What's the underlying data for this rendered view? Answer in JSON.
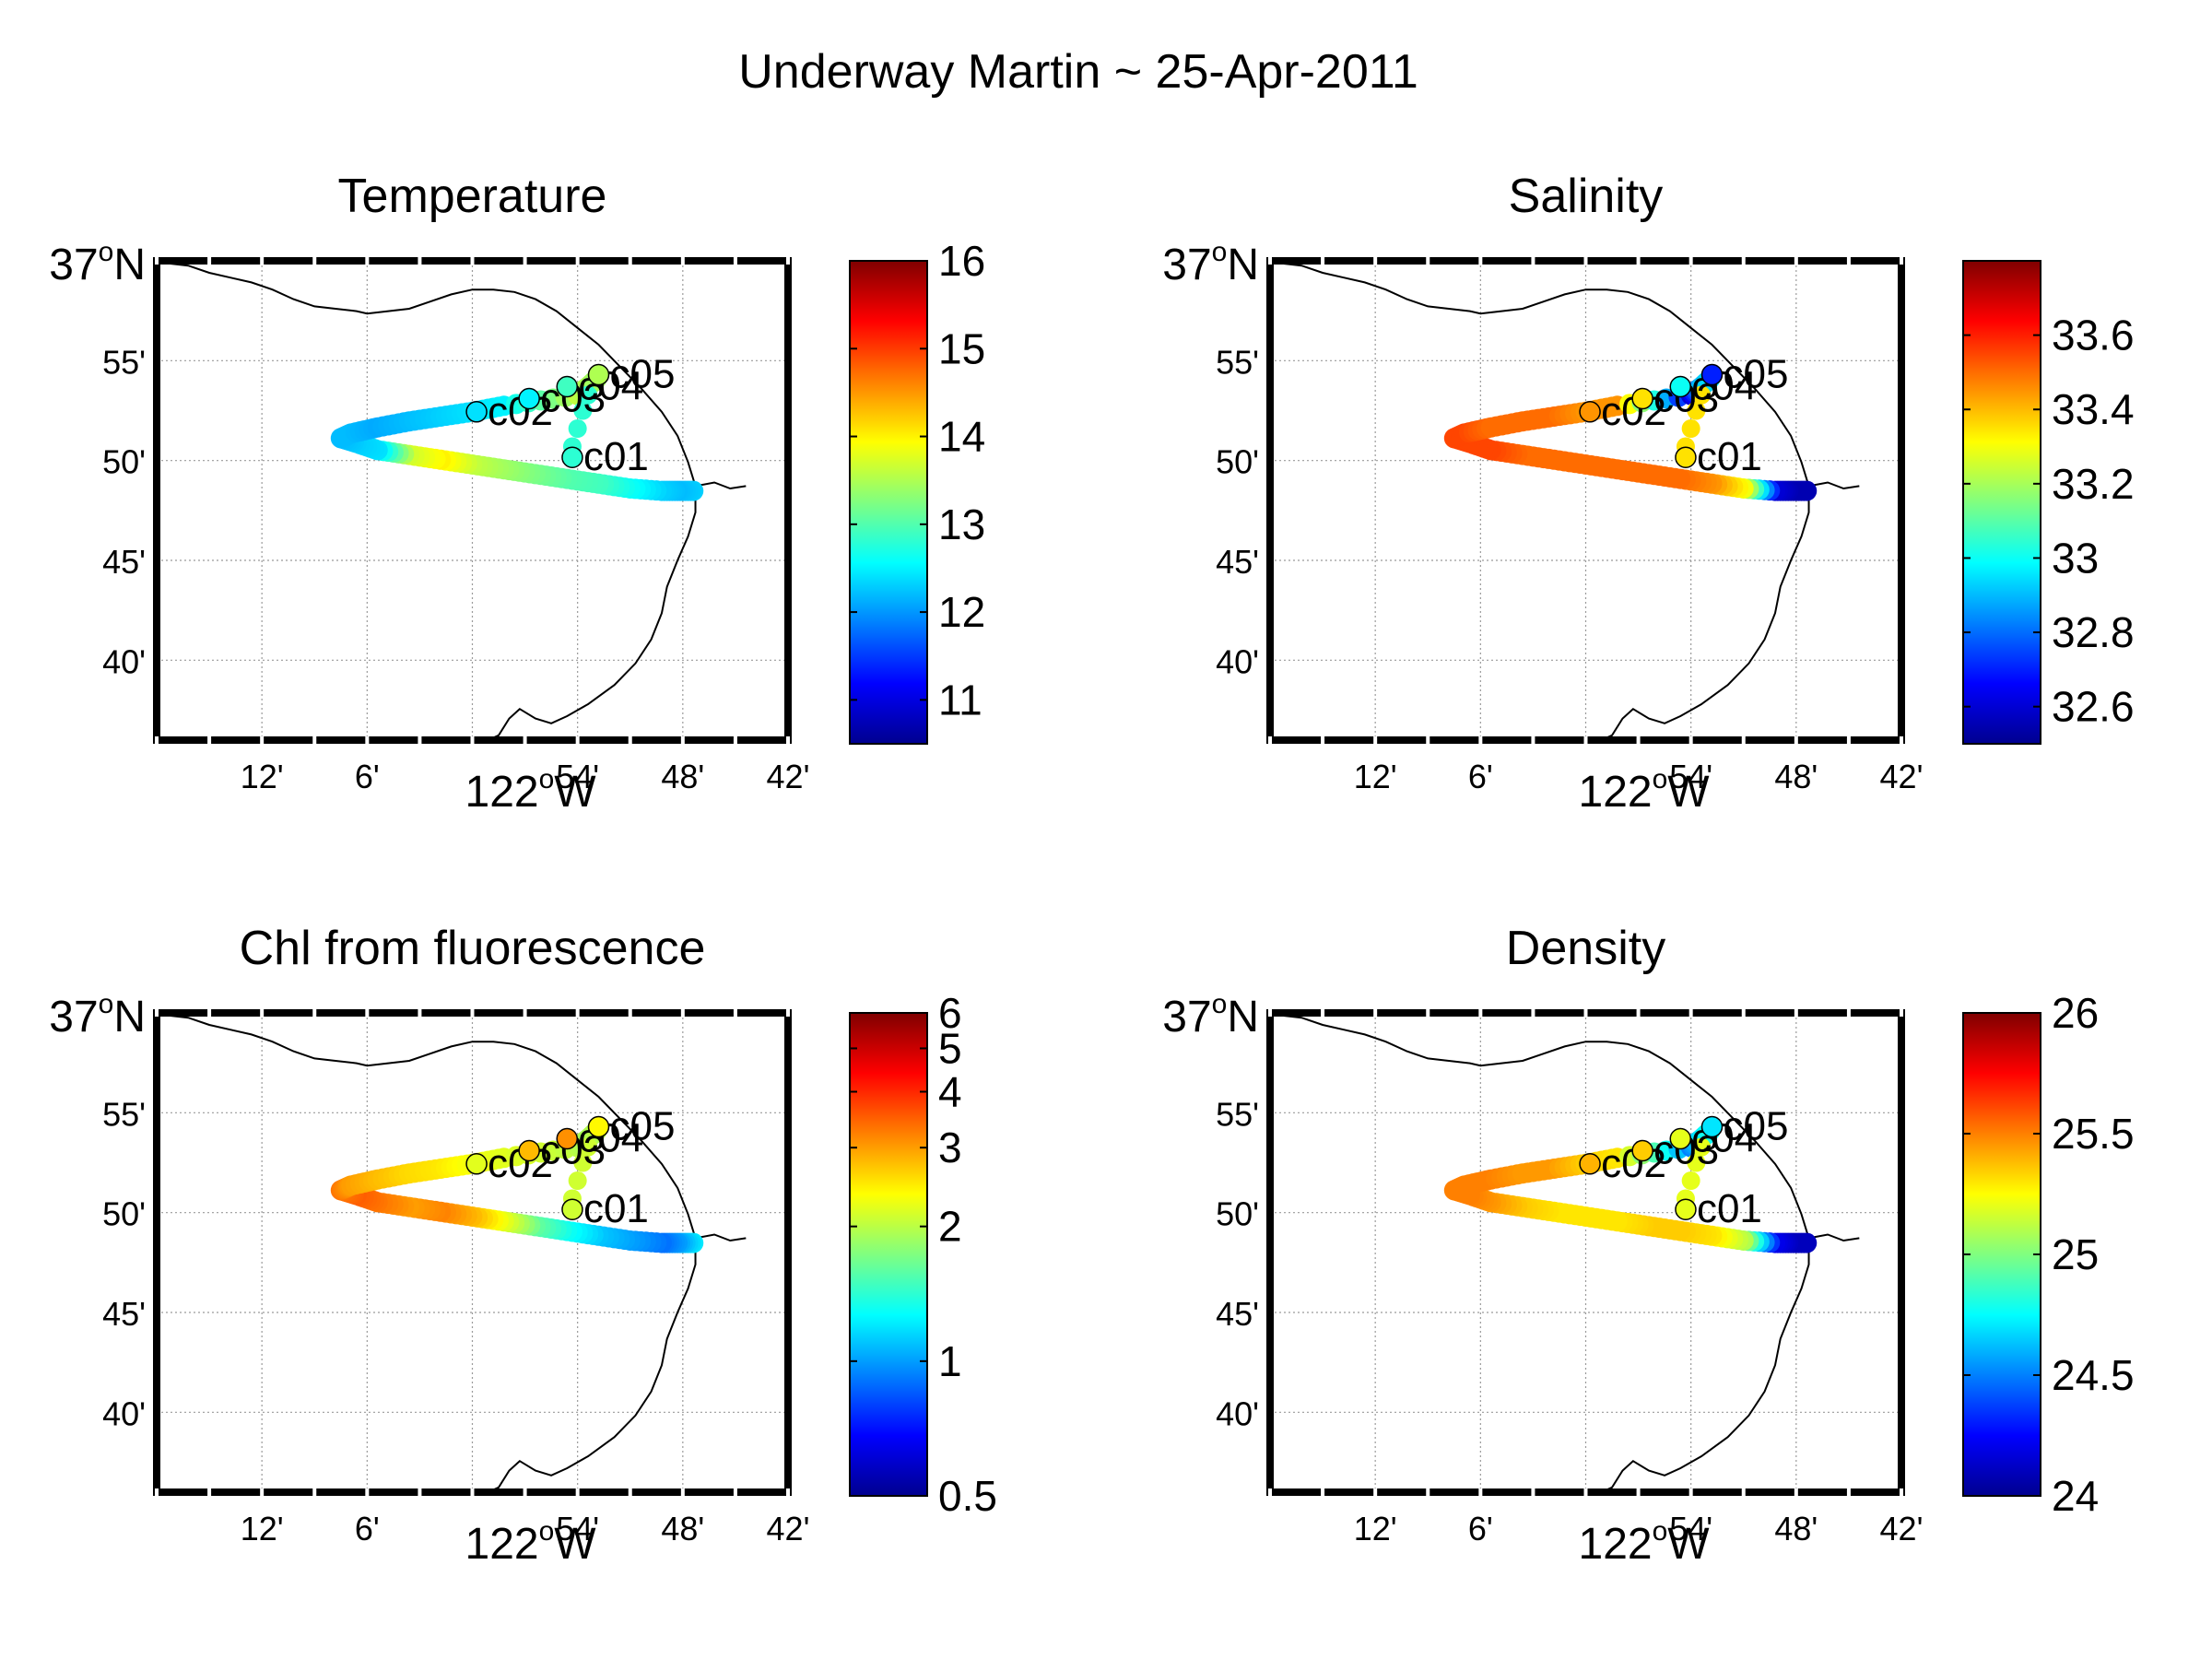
{
  "figure_title": "Underway Martin ~ 25-Apr-2011",
  "axis_labels": {
    "lat_top": "37",
    "lat_top_suffix": "N",
    "lon_center": "122",
    "lon_center_suffix": "W",
    "degree_mark": "o",
    "lat_ticks": [
      {
        "value": 36.9167,
        "label": "55'"
      },
      {
        "value": 36.8333,
        "label": "50'"
      },
      {
        "value": 36.75,
        "label": "45'"
      },
      {
        "value": 36.6667,
        "label": "40'"
      }
    ],
    "lon_ticks": [
      {
        "value": -122.2,
        "label": "12'"
      },
      {
        "value": -122.1,
        "label": "6'"
      },
      {
        "value": -121.9,
        "label": "54'"
      },
      {
        "value": -121.8,
        "label": "48'"
      },
      {
        "value": -121.7,
        "label": "42'"
      }
    ]
  },
  "colors": {
    "jet": [
      "#00008f",
      "#0000ff",
      "#0080ff",
      "#00ffff",
      "#80ff80",
      "#ffff00",
      "#ff8000",
      "#ff0000",
      "#800000"
    ],
    "grid": "#9a9a9a",
    "coast": "#000000"
  },
  "chart_data": [
    {
      "type": "scatter",
      "title": "Temperature",
      "xlim": [
        -122.3,
        -121.7
      ],
      "ylim": [
        36.6,
        37.0
      ],
      "clim": [
        10.5,
        16.0
      ],
      "colorbar_ticks": [
        {
          "value": 11,
          "label": "11"
        },
        {
          "value": 12,
          "label": "12"
        },
        {
          "value": 13,
          "label": "13"
        },
        {
          "value": 14,
          "label": "14"
        },
        {
          "value": 15,
          "label": "15"
        },
        {
          "value": 16,
          "label": "16"
        }
      ],
      "log_colorbar": false,
      "track_values": [
        12.3,
        12.2,
        12.3,
        12.6,
        12.9,
        13.0,
        13.2,
        13.4,
        13.6,
        14.0,
        13.7,
        12.4,
        12.3,
        12.2,
        12.2,
        12.1,
        12.2,
        12.3,
        12.4,
        12.5,
        13.6,
        13.5,
        13.4
      ],
      "stations": [
        {
          "name": "c01",
          "lon": -121.905,
          "lat": 36.836,
          "value": 12.8
        },
        {
          "name": "c02",
          "lon": -121.996,
          "lat": 36.874,
          "value": 12.4
        },
        {
          "name": "c03",
          "lon": -121.946,
          "lat": 36.885,
          "value": 12.5
        },
        {
          "name": "c04",
          "lon": -121.91,
          "lat": 36.895,
          "value": 12.9
        },
        {
          "name": "c05",
          "lon": -121.88,
          "lat": 36.905,
          "value": 13.5
        }
      ]
    },
    {
      "type": "scatter",
      "title": "Salinity",
      "xlim": [
        -122.3,
        -121.7
      ],
      "ylim": [
        36.6,
        37.0
      ],
      "clim": [
        32.5,
        33.8
      ],
      "colorbar_ticks": [
        {
          "value": 32.6,
          "label": "32.6"
        },
        {
          "value": 32.8,
          "label": "32.8"
        },
        {
          "value": 33.0,
          "label": "33"
        },
        {
          "value": 33.2,
          "label": "33.2"
        },
        {
          "value": 33.4,
          "label": "33.4"
        },
        {
          "value": 33.6,
          "label": "33.6"
        }
      ],
      "log_colorbar": false,
      "track_values": [
        32.55,
        32.55,
        32.6,
        33.3,
        33.45,
        33.5,
        33.5,
        33.5,
        33.5,
        33.5,
        33.5,
        33.55,
        33.55,
        33.55,
        33.55,
        33.5,
        33.5,
        33.5,
        33.45,
        33.45,
        32.6,
        32.9,
        32.95
      ],
      "stations": [
        {
          "name": "c01",
          "lon": -121.905,
          "lat": 36.836,
          "value": 33.35
        },
        {
          "name": "c02",
          "lon": -121.996,
          "lat": 36.874,
          "value": 33.45
        },
        {
          "name": "c03",
          "lon": -121.946,
          "lat": 36.885,
          "value": 33.35
        },
        {
          "name": "c04",
          "lon": -121.91,
          "lat": 36.895,
          "value": 33.0
        },
        {
          "name": "c05",
          "lon": -121.88,
          "lat": 36.905,
          "value": 32.7
        }
      ]
    },
    {
      "type": "scatter",
      "title": "Chl from fluorescence",
      "xlim": [
        -122.3,
        -121.7
      ],
      "ylim": [
        36.6,
        37.0
      ],
      "clim": [
        0.5,
        6
      ],
      "colorbar_ticks": [
        {
          "value": 0.5,
          "label": "0.5"
        },
        {
          "value": 1,
          "label": "1"
        },
        {
          "value": 2,
          "label": "2"
        },
        {
          "value": 3,
          "label": "3"
        },
        {
          "value": 4,
          "label": "4"
        },
        {
          "value": 5,
          "label": "5"
        },
        {
          "value": 6,
          "label": "6"
        }
      ],
      "log_colorbar": true,
      "track_values": [
        1.2,
        1.0,
        0.9,
        1.0,
        1.1,
        1.3,
        1.6,
        2.2,
        2.8,
        3.2,
        3.0,
        3.3,
        3.5,
        3.3,
        3.0,
        2.8,
        2.6,
        2.5,
        2.3,
        2.2,
        2.0,
        1.9,
        2.0
      ],
      "stations": [
        {
          "name": "c01",
          "lon": -121.905,
          "lat": 36.836,
          "value": 2.1
        },
        {
          "name": "c02",
          "lon": -121.996,
          "lat": 36.874,
          "value": 2.2
        },
        {
          "name": "c03",
          "lon": -121.946,
          "lat": 36.885,
          "value": 2.8
        },
        {
          "name": "c04",
          "lon": -121.91,
          "lat": 36.895,
          "value": 3.1
        },
        {
          "name": "c05",
          "lon": -121.88,
          "lat": 36.905,
          "value": 2.4
        }
      ]
    },
    {
      "type": "scatter",
      "title": "Density",
      "xlim": [
        -122.3,
        -121.7
      ],
      "ylim": [
        36.6,
        37.0
      ],
      "clim": [
        24.0,
        26.0
      ],
      "colorbar_ticks": [
        {
          "value": 24.0,
          "label": "24"
        },
        {
          "value": 24.5,
          "label": "24.5"
        },
        {
          "value": 25.0,
          "label": "25"
        },
        {
          "value": 25.5,
          "label": "25.5"
        },
        {
          "value": 26.0,
          "label": "26"
        }
      ],
      "log_colorbar": false,
      "track_values": [
        24.1,
        24.1,
        24.2,
        25.1,
        25.3,
        25.35,
        25.35,
        25.3,
        25.3,
        25.3,
        25.35,
        25.45,
        25.5,
        25.5,
        25.5,
        25.5,
        25.45,
        25.45,
        25.35,
        25.3,
        24.5,
        24.7,
        24.8
      ],
      "stations": [
        {
          "name": "c01",
          "lon": -121.905,
          "lat": 36.836,
          "value": 25.2
        },
        {
          "name": "c02",
          "lon": -121.996,
          "lat": 36.874,
          "value": 25.4
        },
        {
          "name": "c03",
          "lon": -121.946,
          "lat": 36.885,
          "value": 25.35
        },
        {
          "name": "c04",
          "lon": -121.91,
          "lat": 36.895,
          "value": 25.2
        },
        {
          "name": "c05",
          "lon": -121.88,
          "lat": 36.905,
          "value": 24.7
        }
      ]
    }
  ]
}
